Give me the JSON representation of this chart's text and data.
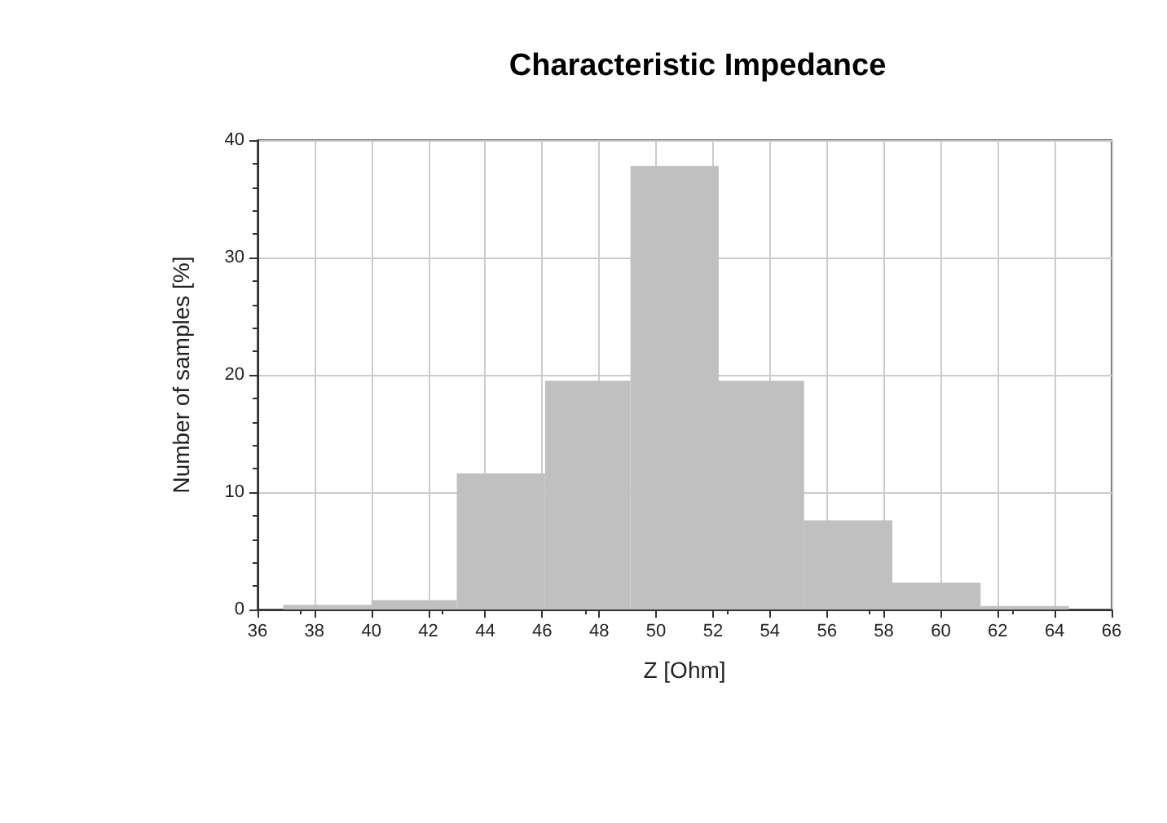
{
  "chart_data": {
    "type": "histogram",
    "title": "Characteristic Impedance",
    "xlabel": "Z [Ohm]",
    "ylabel": "Number of samples [%]",
    "bins": [
      36.9,
      40.0,
      43.0,
      46.1,
      49.1,
      52.2,
      55.2,
      58.3,
      61.4,
      64.5
    ],
    "values": [
      0.4,
      0.8,
      11.6,
      19.5,
      37.8,
      19.5,
      7.6,
      2.3,
      0.3
    ],
    "color": "#c0c0c0",
    "xlim": [
      36,
      66
    ],
    "xticks": [
      36,
      38,
      40,
      42,
      44,
      46,
      48,
      50,
      52,
      54,
      56,
      58,
      60,
      62,
      64,
      66
    ],
    "ylim": [
      0,
      40
    ],
    "yticks": [
      0,
      10,
      20,
      30,
      40
    ],
    "grid": true
  }
}
